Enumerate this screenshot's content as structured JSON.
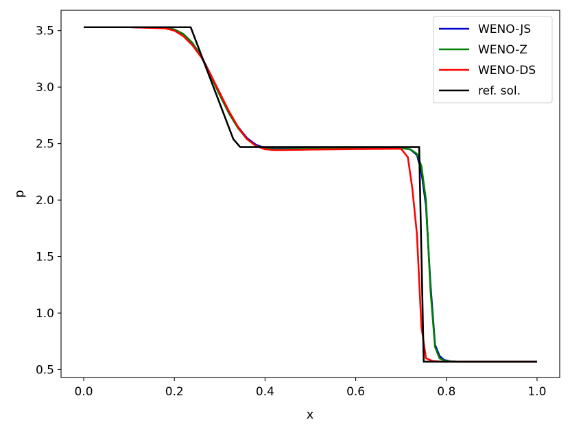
{
  "chart_data": {
    "type": "line",
    "title": "",
    "xlabel": "x",
    "ylabel": "p",
    "xlim": [
      -0.05,
      1.05
    ],
    "ylim": [
      0.43,
      3.68
    ],
    "xticks": [
      0.0,
      0.2,
      0.4,
      0.6,
      0.8,
      1.0
    ],
    "xtick_labels": [
      "0.0",
      "0.2",
      "0.4",
      "0.6",
      "0.8",
      "1.0"
    ],
    "yticks": [
      0.5,
      1.0,
      1.5,
      2.0,
      2.5,
      3.0,
      3.5
    ],
    "ytick_labels": [
      "0.5",
      "1.0",
      "1.5",
      "2.0",
      "2.5",
      "3.0",
      "3.5"
    ],
    "grid": false,
    "legend_position": "top-right",
    "series": [
      {
        "name": "WENO-JS",
        "color": "#0000cc",
        "x": [
          0.0,
          0.1,
          0.18,
          0.2,
          0.22,
          0.24,
          0.26,
          0.28,
          0.3,
          0.32,
          0.34,
          0.36,
          0.38,
          0.4,
          0.42,
          0.44,
          0.5,
          0.6,
          0.7,
          0.72,
          0.735,
          0.745,
          0.755,
          0.765,
          0.775,
          0.785,
          0.795,
          0.81,
          0.83,
          0.9,
          1.0
        ],
        "y": [
          3.53,
          3.53,
          3.525,
          3.51,
          3.47,
          3.39,
          3.27,
          3.11,
          2.94,
          2.78,
          2.65,
          2.55,
          2.49,
          2.46,
          2.455,
          2.455,
          2.457,
          2.46,
          2.46,
          2.45,
          2.4,
          2.25,
          1.95,
          1.25,
          0.72,
          0.62,
          0.585,
          0.572,
          0.57,
          0.57,
          0.57
        ]
      },
      {
        "name": "WENO-Z",
        "color": "#008000",
        "x": [
          0.0,
          0.1,
          0.18,
          0.2,
          0.22,
          0.24,
          0.26,
          0.28,
          0.3,
          0.32,
          0.34,
          0.36,
          0.38,
          0.4,
          0.42,
          0.44,
          0.5,
          0.6,
          0.7,
          0.72,
          0.735,
          0.745,
          0.755,
          0.765,
          0.775,
          0.785,
          0.795,
          0.81,
          0.83,
          0.9,
          1.0
        ],
        "y": [
          3.53,
          3.53,
          3.525,
          3.51,
          3.47,
          3.39,
          3.27,
          3.1,
          2.93,
          2.77,
          2.64,
          2.54,
          2.48,
          2.455,
          2.45,
          2.45,
          2.455,
          2.46,
          2.46,
          2.45,
          2.41,
          2.3,
          2.0,
          1.2,
          0.7,
          0.6,
          0.58,
          0.572,
          0.57,
          0.57,
          0.57
        ]
      },
      {
        "name": "WENO-DS",
        "color": "#ff0000",
        "x": [
          0.0,
          0.1,
          0.18,
          0.2,
          0.22,
          0.24,
          0.26,
          0.28,
          0.3,
          0.32,
          0.34,
          0.36,
          0.38,
          0.4,
          0.42,
          0.44,
          0.5,
          0.6,
          0.7,
          0.715,
          0.725,
          0.735,
          0.745,
          0.755,
          0.77,
          0.79,
          0.85,
          1.0
        ],
        "y": [
          3.53,
          3.53,
          3.52,
          3.5,
          3.45,
          3.37,
          3.26,
          3.11,
          2.95,
          2.79,
          2.65,
          2.54,
          2.48,
          2.45,
          2.443,
          2.443,
          2.447,
          2.452,
          2.455,
          2.38,
          2.1,
          1.7,
          0.88,
          0.6,
          0.575,
          0.57,
          0.57,
          0.57
        ]
      },
      {
        "name": "ref. sol.",
        "color": "#000000",
        "x": [
          0.0,
          0.236,
          0.33,
          0.345,
          0.74,
          0.74,
          0.75,
          1.0
        ],
        "y": [
          3.53,
          3.53,
          2.54,
          2.47,
          2.47,
          2.46,
          0.57,
          0.57
        ]
      }
    ]
  }
}
